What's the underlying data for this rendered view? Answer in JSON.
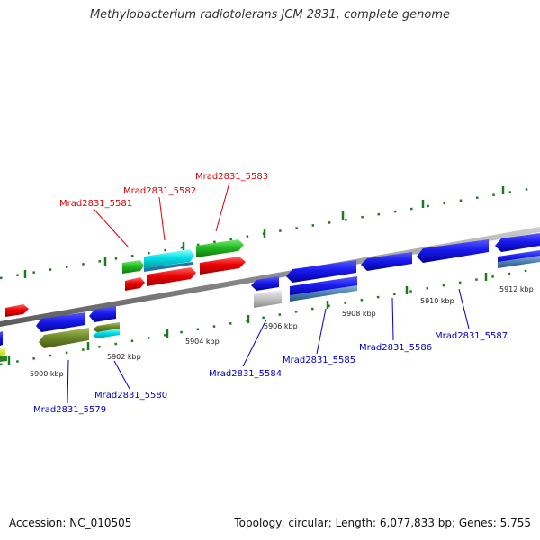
{
  "title": "Methylobacterium radiotolerans JCM 2831, complete genome",
  "footer": {
    "accession": "Accession: NC_010505",
    "summary": "Topology: circular; Length: 6,077,833 bp; Genes: 5,755"
  },
  "scale_labels": [
    "5900 kbp",
    "5902 kbp",
    "5904 kbp",
    "5906 kbp",
    "5908 kbp",
    "5910 kbp",
    "5912 kbp"
  ],
  "gene_labels_top": [
    "Mrad2831_5581",
    "Mrad2831_5582",
    "Mrad2831_5583"
  ],
  "gene_labels_bottom": [
    "Mrad2831_5579",
    "Mrad2831_5580",
    "Mrad2831_5584",
    "Mrad2831_5585",
    "Mrad2831_5586",
    "Mrad2831_5587"
  ],
  "colors": {
    "forward_label": "#dd0000",
    "reverse_label": "#0000cc",
    "backbone": "#8a8a8a",
    "tick": "#1f7a1f"
  }
}
